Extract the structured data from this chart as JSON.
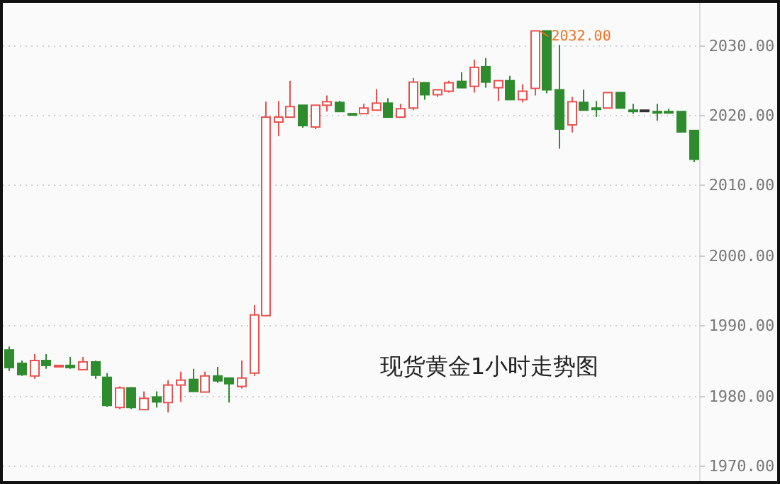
{
  "chart_data": {
    "type": "candlestick",
    "categories": [
      null,
      null,
      null,
      null,
      null,
      null,
      null,
      null,
      null,
      null,
      null,
      null,
      null,
      null,
      null,
      null,
      null,
      null,
      null,
      null,
      null,
      null,
      null,
      null,
      null,
      null,
      null,
      null,
      null,
      null,
      null,
      null,
      null,
      null,
      null,
      null,
      null,
      null,
      null,
      null,
      null,
      null,
      null,
      null,
      null,
      null,
      null,
      null,
      null,
      null,
      null,
      null,
      null,
      null,
      null,
      null,
      null
    ],
    "ohlc": [
      [
        1986.5,
        1987.0,
        1983.5,
        1984.0
      ],
      [
        1984.6,
        1985.0,
        1982.8,
        1983.0
      ],
      [
        1982.8,
        1985.9,
        1982.4,
        1985.0
      ],
      [
        1985.0,
        1985.9,
        1983.8,
        1984.3
      ],
      [
        1984.3,
        1984.4,
        1984.2,
        1984.3
      ],
      [
        1984.3,
        1985.5,
        1983.8,
        1984.0
      ],
      [
        1983.7,
        1985.5,
        1983.7,
        1984.8
      ],
      [
        1984.8,
        1985.0,
        1982.4,
        1982.9
      ],
      [
        1982.6,
        1983.2,
        1978.4,
        1978.6
      ],
      [
        1978.3,
        1981.3,
        1978.1,
        1981.1
      ],
      [
        1981.1,
        1981.2,
        1978.1,
        1978.3
      ],
      [
        1978.0,
        1980.6,
        1978.0,
        1979.6
      ],
      [
        1979.8,
        1980.6,
        1978.3,
        1979.1
      ],
      [
        1979.0,
        1982.2,
        1977.6,
        1981.5
      ],
      [
        1981.5,
        1983.4,
        1979.1,
        1982.2
      ],
      [
        1982.3,
        1983.8,
        1980.6,
        1980.6
      ],
      [
        1980.5,
        1983.4,
        1980.5,
        1982.8
      ],
      [
        1982.8,
        1984.1,
        1981.8,
        1982.1
      ],
      [
        1982.5,
        1982.5,
        1979.0,
        1981.7
      ],
      [
        1981.3,
        1985.0,
        1981.0,
        1982.5
      ],
      [
        1983.2,
        1992.9,
        1982.8,
        1991.5
      ],
      [
        1991.4,
        2021.9,
        1991.4,
        2019.7
      ],
      [
        2019.0,
        2022.0,
        2017.0,
        2019.7
      ],
      [
        2019.7,
        2024.9,
        2019.7,
        2021.2
      ],
      [
        2021.4,
        2021.4,
        2018.2,
        2018.5
      ],
      [
        2018.3,
        2021.4,
        2018.0,
        2021.4
      ],
      [
        2021.4,
        2022.8,
        2020.5,
        2021.9
      ],
      [
        2021.8,
        2022.0,
        2020.5,
        2020.5
      ],
      [
        2020.2,
        2020.2,
        2020.2,
        2020.2
      ],
      [
        2020.2,
        2021.6,
        2020.2,
        2021.0
      ],
      [
        2020.7,
        2023.7,
        2020.7,
        2021.7
      ],
      [
        2021.7,
        2022.4,
        2019.7,
        2019.7
      ],
      [
        2019.7,
        2021.6,
        2019.7,
        2020.9
      ],
      [
        2021.0,
        2025.3,
        2020.7,
        2024.7
      ],
      [
        2024.6,
        2024.6,
        2022.2,
        2022.9
      ],
      [
        2022.9,
        2023.6,
        2022.6,
        2023.6
      ],
      [
        2023.4,
        2024.9,
        2023.2,
        2024.6
      ],
      [
        2024.8,
        2026.1,
        2023.9,
        2023.9
      ],
      [
        2024.1,
        2027.9,
        2023.2,
        2026.8
      ],
      [
        2026.9,
        2028.1,
        2023.9,
        2024.7
      ],
      [
        2023.9,
        2024.9,
        2022.0,
        2024.9
      ],
      [
        2024.9,
        2025.6,
        2022.2,
        2022.2
      ],
      [
        2022.2,
        2024.4,
        2021.8,
        2023.4
      ],
      [
        2023.8,
        2032.0,
        2022.8,
        2032.0
      ],
      [
        2032.0,
        2032.0,
        2023.1,
        2023.6
      ],
      [
        2023.6,
        2030.0,
        2015.2,
        2018.0
      ],
      [
        2018.6,
        2022.6,
        2017.5,
        2021.9
      ],
      [
        2021.8,
        2023.6,
        2020.7,
        2020.7
      ],
      [
        2021.0,
        2022.0,
        2019.7,
        2020.9
      ],
      [
        2021.0,
        2023.2,
        2021.0,
        2023.2
      ],
      [
        2023.2,
        2023.2,
        2021.0,
        2021.0
      ],
      [
        2020.7,
        2021.6,
        2020.2,
        2020.7
      ],
      [
        2020.7,
        2020.7,
        2020.7,
        2020.7
      ],
      [
        2020.5,
        2021.6,
        2019.2,
        2020.5
      ],
      [
        2020.5,
        2020.9,
        2020.3,
        2020.3
      ],
      [
        2020.5,
        2020.5,
        2017.6,
        2017.6
      ],
      [
        2017.8,
        2017.8,
        2013.3,
        2013.7
      ]
    ],
    "colors": [
      "#2e8b2e",
      "#2e8b2e",
      "#e8514f",
      "#2e8b2e",
      "#e8514f",
      "#2e8b2e",
      "#e8514f",
      "#2e8b2e",
      "#2e8b2e",
      "#e8514f",
      "#2e8b2e",
      "#e8514f",
      "#2e8b2e",
      "#e8514f",
      "#e8514f",
      "#2e8b2e",
      "#e8514f",
      "#2e8b2e",
      "#2e8b2e",
      "#e8514f",
      "#e8514f",
      "#e8514f",
      "#e8514f",
      "#e8514f",
      "#2e8b2e",
      "#e8514f",
      "#e8514f",
      "#2e8b2e",
      "#2e8b2e",
      "#e8514f",
      "#e8514f",
      "#2e8b2e",
      "#e8514f",
      "#e8514f",
      "#2e8b2e",
      "#e8514f",
      "#e8514f",
      "#2e8b2e",
      "#e8514f",
      "#2e8b2e",
      "#e8514f",
      "#2e8b2e",
      "#e8514f",
      "#e8514f",
      "#2e8b2e",
      "#2e8b2e",
      "#e8514f",
      "#2e8b2e",
      "#2e8b2e",
      "#e8514f",
      "#2e8b2e",
      "#2e8b2e",
      "#333333",
      "#2e8b2e",
      "#2e8b2e",
      "#2e8b2e",
      "#2e8b2e"
    ],
    "ylim": [
      1968,
      2036
    ],
    "yticks": [
      {
        "value": 1970,
        "label": "1970.00"
      },
      {
        "value": 1980,
        "label": "1980.00"
      },
      {
        "value": 1990,
        "label": "1990.00"
      },
      {
        "value": 2000,
        "label": "2000.00"
      },
      {
        "value": 2010,
        "label": "2010.00"
      },
      {
        "value": 2020,
        "label": "2020.00"
      },
      {
        "value": 2030,
        "label": "2030.00"
      }
    ],
    "grid": "y",
    "tick_labels": "y",
    "annotations": [
      "2032.00",
      "现货黄金1小时走势图"
    ]
  }
}
